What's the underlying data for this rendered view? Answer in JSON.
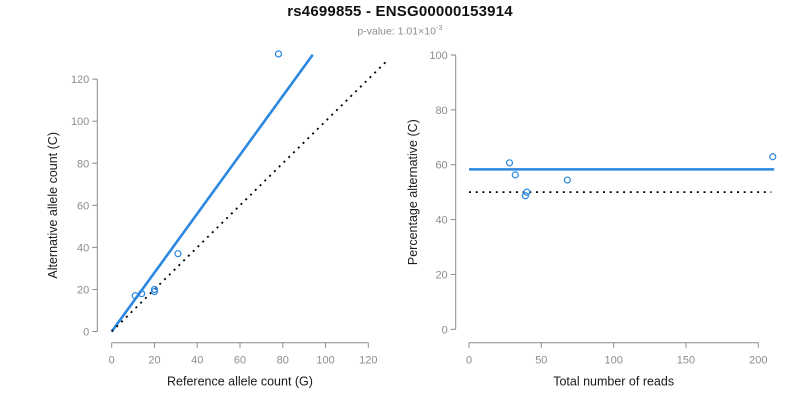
{
  "header": {
    "title": "rs4699855 - ENSG00000153914",
    "subtitle_prefix": "p-value: 1.01×10",
    "subtitle_exponent": "-3"
  },
  "colors": {
    "accent_blue": "#2b87e0",
    "axis_line_gray": "#8a8a8a",
    "tick_label_gray": "#8c8c8c",
    "axis_title_dark": "#1a1a1a",
    "dotted_black": "#000000",
    "background": "#ffffff"
  },
  "chart_data": [
    {
      "id": "allele-counts-scatter",
      "type": "scatter",
      "title": "",
      "xlabel": "Reference allele count (G)",
      "ylabel": "Alternative allele count (C)",
      "xlim": [
        0,
        128
      ],
      "ylim": [
        0,
        132
      ],
      "x_ticks": [
        0,
        20,
        40,
        60,
        80,
        100,
        120
      ],
      "y_ticks": [
        0,
        20,
        40,
        60,
        80,
        100,
        120
      ],
      "grid": false,
      "legend": null,
      "points": [
        [
          11,
          17
        ],
        [
          14,
          18
        ],
        [
          20,
          19
        ],
        [
          20,
          20
        ],
        [
          31,
          37
        ],
        [
          78,
          132
        ]
      ],
      "lines": [
        {
          "name": "fit-line",
          "x": [
            0,
            94
          ],
          "y": [
            0,
            131.6
          ],
          "style": "solid",
          "color": "accent_blue",
          "width": 2.6
        },
        {
          "name": "identity-line",
          "x": [
            0,
            128
          ],
          "y": [
            0,
            128
          ],
          "style": "dotted",
          "color": "dotted_black",
          "width": 1.8
        }
      ]
    },
    {
      "id": "percentage-scatter",
      "type": "scatter",
      "title": "",
      "xlabel": "Total number of reads",
      "ylabel": "Percentage alternative (C)",
      "xlim": [
        0,
        211
      ],
      "ylim": [
        0,
        100
      ],
      "x_ticks": [
        0,
        50,
        100,
        150,
        200
      ],
      "y_ticks": [
        0,
        20,
        40,
        60,
        80,
        100
      ],
      "grid": false,
      "legend": null,
      "points": [
        [
          28,
          60.7
        ],
        [
          32,
          56.3
        ],
        [
          39,
          48.7
        ],
        [
          40,
          50
        ],
        [
          68,
          54.4
        ],
        [
          210,
          62.9
        ]
      ],
      "lines": [
        {
          "name": "mean-line",
          "x": [
            0,
            211
          ],
          "y": [
            58.3,
            58.3
          ],
          "style": "solid",
          "color": "accent_blue",
          "width": 2.6
        },
        {
          "name": "null-line",
          "x": [
            0,
            209
          ],
          "y": [
            50,
            50
          ],
          "style": "dotted",
          "color": "dotted_black",
          "width": 1.8
        }
      ]
    }
  ]
}
